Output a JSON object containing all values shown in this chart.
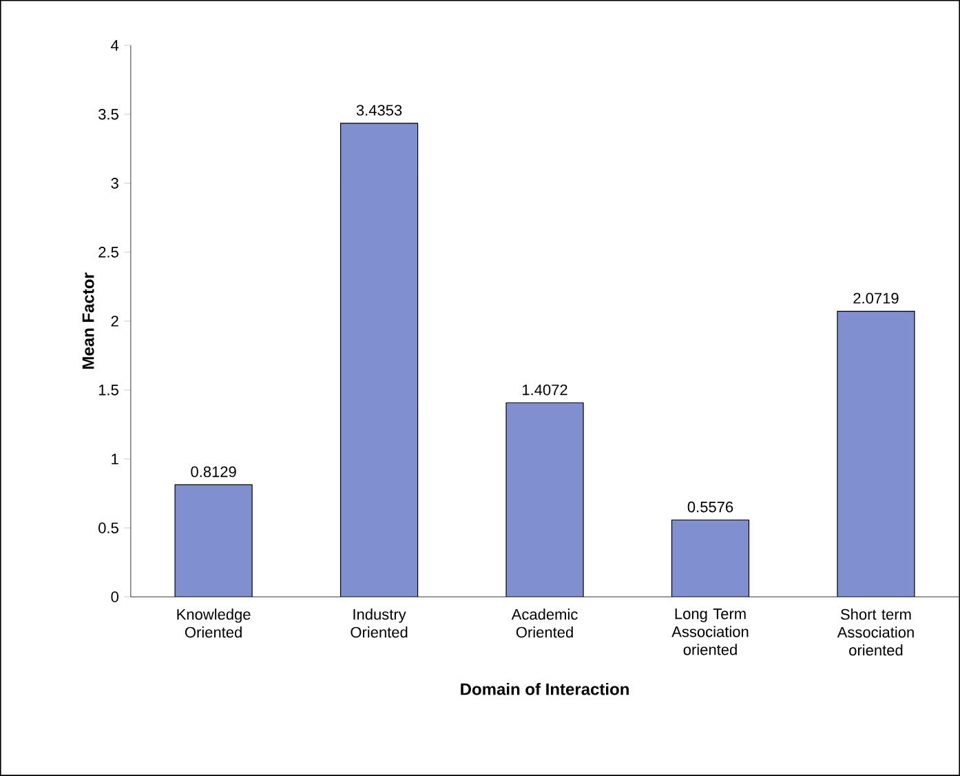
{
  "chart_data": {
    "type": "bar",
    "xlabel": "Domain of Interaction",
    "ylabel": "Mean Factor",
    "categories": [
      "Knowledge Oriented",
      "Industry Oriented",
      "Academic Oriented",
      "Long Term Association oriented",
      "Short term Association oriented"
    ],
    "values": [
      0.8129,
      3.4353,
      1.4072,
      0.5576,
      2.0719
    ],
    "color": "#7f8fcf",
    "ylim": [
      0,
      4
    ],
    "yticks": [
      0,
      0.5,
      1,
      1.5,
      2,
      2.5,
      3,
      3.5,
      4
    ],
    "data_labels": true,
    "grid": false
  }
}
